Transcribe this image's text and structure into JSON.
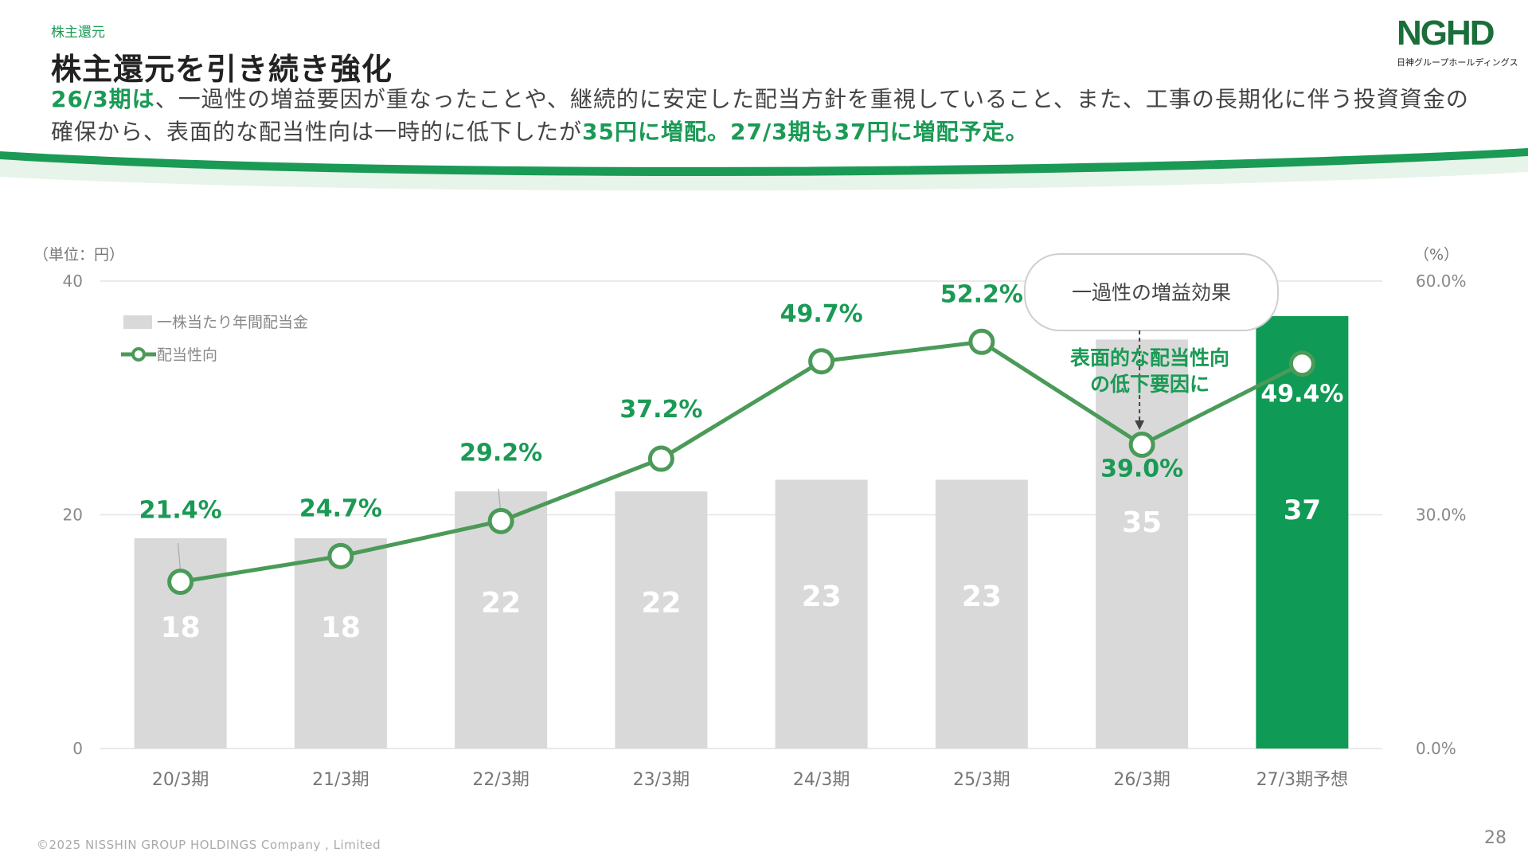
{
  "header": {
    "section": "株主還元",
    "title": "株主還元を引き続き強化",
    "lead": [
      {
        "text": "26/3期は",
        "hl": true
      },
      {
        "text": "、一過性の増益要因が重なったことや、継続的に安定した配当方針を重視していること、また、工事の長期化に伴う投資資金の確保から、表面的な配当性向は一時的に低下したが",
        "hl": false
      },
      {
        "text": "35円に増配。27/3期も37円に増配予定。",
        "hl": true
      }
    ]
  },
  "logo": {
    "mark": "NGHD",
    "sub": "日神グループホールディングス"
  },
  "footer": {
    "copyright": "©2025 NISSHIN GROUP HOLDINGS Company , Limited",
    "page": "28"
  },
  "colors": {
    "accent": "#1a9a55",
    "bar_gray": "#d9d9d9",
    "bar_highlight": "#0f9a55",
    "line": "#4a9a58"
  },
  "chart_data": {
    "type": "bar+line",
    "unit_left": "（単位：円）",
    "unit_right": "（%）",
    "categories": [
      "20/3期",
      "21/3期",
      "22/3期",
      "23/3期",
      "24/3期",
      "25/3期",
      "26/3期",
      "27/3期予想"
    ],
    "y_left": {
      "ylim": [
        0,
        40
      ],
      "ticks": [
        "0",
        "20",
        "40"
      ]
    },
    "y_right": {
      "ylim": [
        0,
        60
      ],
      "ticks": [
        "0.0%",
        "30.0%",
        "60.0%"
      ]
    },
    "series": [
      {
        "name": "一株当たり年間配当金",
        "type": "bar",
        "axis": "left",
        "values": [
          18,
          18,
          22,
          22,
          23,
          23,
          35,
          37
        ],
        "labels": [
          "18",
          "18",
          "22",
          "22",
          "23",
          "23",
          "35",
          "37"
        ],
        "highlight_index": 7
      },
      {
        "name": "配当性向",
        "type": "line",
        "axis": "right",
        "values": [
          21.4,
          24.7,
          29.2,
          37.2,
          49.7,
          52.2,
          39.0,
          49.4
        ],
        "labels": [
          "21.4%",
          "24.7%",
          "29.2%",
          "37.2%",
          "49.7%",
          "52.2%",
          "39.0%",
          "49.4%"
        ]
      }
    ],
    "annotations": {
      "callout": "一過性の増益効果",
      "note_lines": [
        "表面的な配当性向",
        "の低下要因に"
      ]
    },
    "grid": "horizontal",
    "legend": "top-left"
  }
}
